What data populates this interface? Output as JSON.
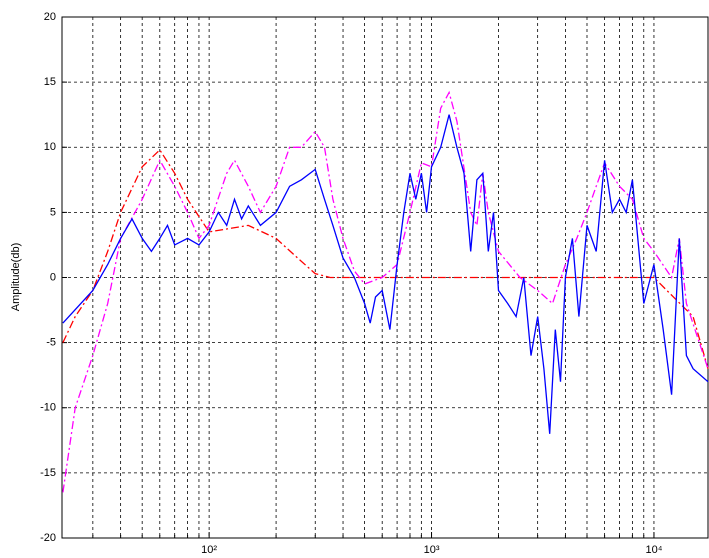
{
  "chart_data": {
    "type": "line",
    "y_label": "Amplitude(db)",
    "log_x": true,
    "grid": true,
    "xlim": [
      21.8,
      17500
    ],
    "ylim": [
      -20,
      20
    ],
    "xticks": [
      {
        "value": 100,
        "label": "10²"
      },
      {
        "value": 1000,
        "label": "10³"
      },
      {
        "value": 10000,
        "label": "10⁴"
      }
    ],
    "xminorticks": [
      30,
      40,
      50,
      60,
      70,
      80,
      90,
      200,
      300,
      400,
      500,
      600,
      700,
      800,
      900,
      2000,
      3000,
      4000,
      5000,
      6000,
      7000,
      8000,
      9000
    ],
    "yticks": [
      -20,
      -15,
      -10,
      -5,
      0,
      5,
      10,
      15,
      20
    ],
    "series": [
      {
        "color": "#ff0000",
        "dash": true,
        "x": [
          22,
          25,
          30,
          35,
          40,
          50,
          60,
          70,
          80,
          100,
          150,
          200,
          250,
          300,
          350,
          2000,
          10000,
          15000,
          17500
        ],
        "values": [
          -5,
          -3,
          -1,
          2,
          5,
          8.5,
          9.8,
          8,
          6,
          3.5,
          4,
          3,
          1.5,
          0.3,
          0,
          0,
          0,
          -3,
          -7
        ]
      },
      {
        "color": "#ff00ff",
        "dash": true,
        "x": [
          22,
          25,
          30,
          35,
          40,
          50,
          60,
          70,
          80,
          90,
          100,
          120,
          130,
          150,
          170,
          200,
          230,
          260,
          300,
          330,
          360,
          400,
          450,
          500,
          600,
          700,
          800,
          900,
          1000,
          1100,
          1200,
          1300,
          1500,
          1600,
          1700,
          1800,
          2000,
          2500,
          3000,
          3500,
          4000,
          4500,
          5000,
          5500,
          6000,
          7000,
          8000,
          9000,
          10000,
          12000,
          13000,
          14000,
          16000,
          17500
        ],
        "values": [
          -16.5,
          -10,
          -6,
          -2,
          3,
          6,
          9,
          7,
          5,
          3,
          4,
          8,
          9,
          7,
          5,
          7,
          10,
          10,
          11.2,
          10,
          6,
          3,
          0.5,
          -0.5,
          0,
          1,
          5,
          8.8,
          8.5,
          13,
          14.2,
          12,
          5,
          4,
          8,
          5,
          2,
          0,
          -1,
          -2,
          1,
          3,
          5,
          7,
          8.8,
          7,
          6,
          3,
          2,
          0,
          3,
          -2,
          -5,
          -7
        ]
      },
      {
        "color": "#0000ff",
        "dash": false,
        "x": [
          22,
          30,
          35,
          40,
          45,
          50,
          55,
          60,
          65,
          70,
          80,
          90,
          100,
          110,
          120,
          130,
          140,
          150,
          170,
          200,
          230,
          260,
          300,
          330,
          360,
          400,
          450,
          500,
          530,
          560,
          600,
          650,
          700,
          750,
          800,
          850,
          900,
          950,
          1000,
          1100,
          1200,
          1300,
          1400,
          1500,
          1600,
          1700,
          1800,
          1900,
          2000,
          2200,
          2400,
          2600,
          2800,
          3000,
          3200,
          3400,
          3600,
          3800,
          4000,
          4300,
          4600,
          5000,
          5500,
          6000,
          6500,
          7000,
          7500,
          8000,
          9000,
          10000,
          11000,
          12000,
          13000,
          14000,
          15000,
          17500
        ],
        "values": [
          -3.5,
          -1,
          1,
          3,
          4.5,
          3,
          2,
          3,
          4,
          2.5,
          3,
          2.5,
          3.5,
          5,
          4,
          6,
          4.5,
          5.5,
          4,
          5,
          7,
          7.5,
          8.3,
          6,
          4,
          1.5,
          0,
          -2,
          -3.5,
          -1.5,
          -1,
          -4,
          1,
          5,
          8,
          6,
          8,
          5,
          8.5,
          10,
          12.5,
          10,
          8,
          2,
          7.5,
          8,
          2,
          5,
          -1,
          -2,
          -3,
          0,
          -6,
          -3,
          -7,
          -12,
          -4,
          -8,
          0,
          3,
          -3,
          4,
          2,
          9,
          5,
          6,
          5,
          7.5,
          -2,
          1,
          -4,
          -9,
          3,
          -6,
          -7,
          -8
        ]
      }
    ]
  }
}
